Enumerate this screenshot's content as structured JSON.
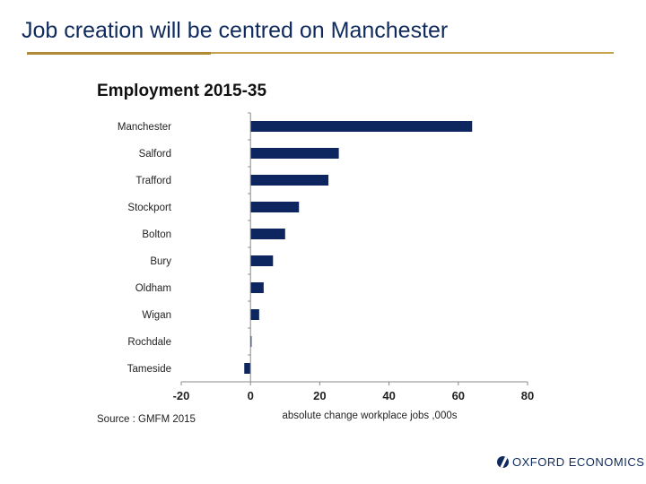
{
  "slide": {
    "title": "Job creation will be centred on Manchester",
    "source": "Source : GMFM 2015",
    "logo_text": "OXFORD ECONOMICS",
    "logo_icon": "oxford-economics-logo-icon"
  },
  "colors": {
    "bar": "#0d2660",
    "title": "#0f2a5c",
    "rule": "#c6a24a"
  },
  "chart_data": {
    "type": "bar",
    "orientation": "horizontal",
    "title": "Employment 2015-35",
    "xlabel": "absolute change workplace jobs ,000s",
    "ylabel": "",
    "categories": [
      "Manchester",
      "Salford",
      "Trafford",
      "Stockport",
      "Bolton",
      "Bury",
      "Oldham",
      "Wigan",
      "Rochdale",
      "Tameside"
    ],
    "values": [
      64,
      25.5,
      22.5,
      14,
      10,
      6.5,
      3.8,
      2.5,
      0.3,
      -1.8
    ],
    "xlim": [
      -20,
      80
    ],
    "xticks": [
      "-20",
      "0",
      "20",
      "40",
      "60",
      "80"
    ],
    "grid": false,
    "legend": "none"
  }
}
